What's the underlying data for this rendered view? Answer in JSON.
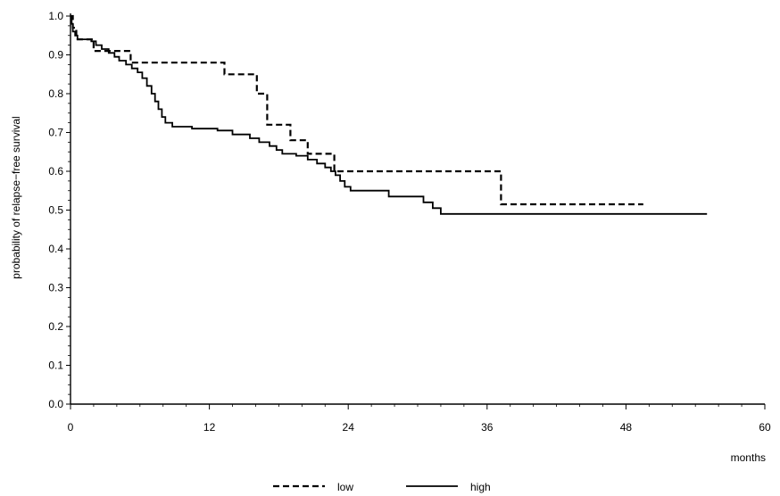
{
  "chart_data": {
    "type": "line",
    "title": "",
    "xlabel": "months",
    "ylabel": "probability of relapse−free survival",
    "xlim": [
      0,
      60
    ],
    "ylim": [
      0.0,
      1.0
    ],
    "x_ticks": [
      0,
      12,
      24,
      36,
      48,
      60
    ],
    "x_tick_labels": [
      "0",
      "12",
      "24",
      "36",
      "48",
      "60"
    ],
    "y_ticks": [
      0.0,
      0.1,
      0.2,
      0.3,
      0.4,
      0.5,
      0.6,
      0.7,
      0.8,
      0.9,
      1.0
    ],
    "y_tick_labels": [
      "0.0",
      "0.1",
      "0.2",
      "0.3",
      "0.4",
      "0.5",
      "0.6",
      "0.7",
      "0.8",
      "0.9",
      "1.0"
    ],
    "grid": false,
    "legend_position": "bottom",
    "step": true,
    "series": [
      {
        "name": "low",
        "line_style": "dashed",
        "color": "#000000",
        "points": [
          [
            0,
            1.0
          ],
          [
            0.2,
            0.97
          ],
          [
            0.5,
            0.94
          ],
          [
            2.0,
            0.91
          ],
          [
            5.2,
            0.88
          ],
          [
            13.3,
            0.85
          ],
          [
            16.1,
            0.8
          ],
          [
            17.0,
            0.72
          ],
          [
            19.0,
            0.68
          ],
          [
            20.5,
            0.645
          ],
          [
            22.8,
            0.6
          ],
          [
            37.2,
            0.515
          ],
          [
            49.5,
            0.515
          ]
        ]
      },
      {
        "name": "high",
        "line_style": "solid",
        "color": "#000000",
        "points": [
          [
            0,
            1.0
          ],
          [
            0.1,
            0.98
          ],
          [
            0.2,
            0.96
          ],
          [
            0.4,
            0.95
          ],
          [
            0.6,
            0.94
          ],
          [
            1.8,
            0.935
          ],
          [
            2.2,
            0.925
          ],
          [
            2.7,
            0.915
          ],
          [
            3.3,
            0.905
          ],
          [
            3.8,
            0.895
          ],
          [
            4.2,
            0.885
          ],
          [
            4.8,
            0.875
          ],
          [
            5.3,
            0.865
          ],
          [
            5.8,
            0.855
          ],
          [
            6.2,
            0.84
          ],
          [
            6.6,
            0.82
          ],
          [
            7.0,
            0.8
          ],
          [
            7.3,
            0.78
          ],
          [
            7.6,
            0.76
          ],
          [
            7.9,
            0.74
          ],
          [
            8.2,
            0.725
          ],
          [
            8.8,
            0.715
          ],
          [
            10.5,
            0.71
          ],
          [
            12.7,
            0.705
          ],
          [
            14.0,
            0.695
          ],
          [
            15.5,
            0.685
          ],
          [
            16.3,
            0.675
          ],
          [
            17.2,
            0.665
          ],
          [
            17.8,
            0.655
          ],
          [
            18.3,
            0.645
          ],
          [
            19.5,
            0.64
          ],
          [
            20.5,
            0.63
          ],
          [
            21.3,
            0.62
          ],
          [
            22.0,
            0.61
          ],
          [
            22.5,
            0.6
          ],
          [
            22.9,
            0.59
          ],
          [
            23.3,
            0.575
          ],
          [
            23.7,
            0.56
          ],
          [
            24.2,
            0.55
          ],
          [
            27.5,
            0.535
          ],
          [
            30.5,
            0.52
          ],
          [
            31.3,
            0.505
          ],
          [
            32.0,
            0.49
          ],
          [
            55.0,
            0.49
          ]
        ]
      }
    ]
  }
}
